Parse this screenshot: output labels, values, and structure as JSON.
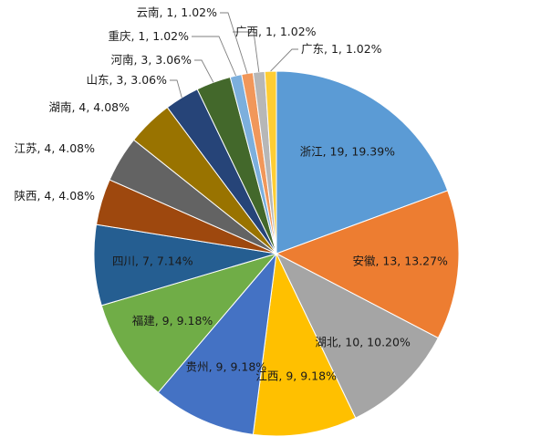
{
  "chart_data": {
    "type": "pie",
    "title": "",
    "legend": "none",
    "start_angle_deg": 0,
    "direction": "clockwise",
    "slices": [
      {
        "name": "浙江",
        "value": 19,
        "percent": "19.39%",
        "label": "浙江, 19, 19.39%",
        "color": "#5b9bd5",
        "label_position": "inside"
      },
      {
        "name": "安徽",
        "value": 13,
        "percent": "13.27%",
        "label": "安徽, 13, 13.27%",
        "color": "#ed7d31",
        "label_position": "inside"
      },
      {
        "name": "湖北",
        "value": 10,
        "percent": "10.20%",
        "label": "湖北, 10, 10.20%",
        "color": "#a5a5a5",
        "label_position": "inside"
      },
      {
        "name": "江西",
        "value": 9,
        "percent": "9.18%",
        "label": "江西, 9, 9.18%",
        "color": "#ffc000",
        "label_position": "inside"
      },
      {
        "name": "贵州",
        "value": 9,
        "percent": "9.18%",
        "label": "贵州, 9, 9.18%",
        "color": "#4472c4",
        "label_position": "inside"
      },
      {
        "name": "福建",
        "value": 9,
        "percent": "9.18%",
        "label": "福建, 9, 9.18%",
        "color": "#70ad47",
        "label_position": "inside"
      },
      {
        "name": "四川",
        "value": 7,
        "percent": "7.14%",
        "label": "四川, 7, 7.14%",
        "color": "#255e91",
        "label_position": "inside"
      },
      {
        "name": "陕西",
        "value": 4,
        "percent": "4.08%",
        "label": "陕西, 4, 4.08%",
        "color": "#9e480e",
        "label_position": "outside"
      },
      {
        "name": "江苏",
        "value": 4,
        "percent": "4.08%",
        "label": "江苏, 4, 4.08%",
        "color": "#636363",
        "label_position": "outside"
      },
      {
        "name": "湖南",
        "value": 4,
        "percent": "4.08%",
        "label": "湖南, 4, 4.08%",
        "color": "#997300",
        "label_position": "outside"
      },
      {
        "name": "山东",
        "value": 3,
        "percent": "3.06%",
        "label": "山东, 3, 3.06%",
        "color": "#264478",
        "label_position": "outside"
      },
      {
        "name": "河南",
        "value": 3,
        "percent": "3.06%",
        "label": "河南, 3, 3.06%",
        "color": "#43682b",
        "label_position": "outside"
      },
      {
        "name": "重庆",
        "value": 1,
        "percent": "1.02%",
        "label": "重庆, 1, 1.02%",
        "color": "#7cafdd",
        "label_position": "outside"
      },
      {
        "name": "云南",
        "value": 1,
        "percent": "1.02%",
        "label": "云南, 1, 1.02%",
        "color": "#f1975a",
        "label_position": "outside"
      },
      {
        "name": "广西",
        "value": 1,
        "percent": "1.02%",
        "label": "广西, 1, 1.02%",
        "color": "#b7b7b7",
        "label_position": "outside"
      },
      {
        "name": "广东",
        "value": 1,
        "percent": "1.02%",
        "label": "广东, 1, 1.02%",
        "color": "#ffcd33",
        "label_position": "outside"
      }
    ]
  }
}
